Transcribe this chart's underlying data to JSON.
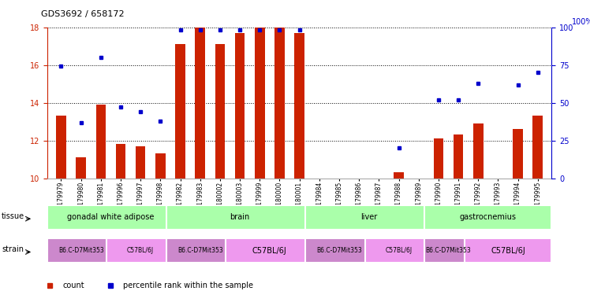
{
  "title": "GDS3692 / 658172",
  "samples": [
    "GSM179979",
    "GSM179980",
    "GSM179981",
    "GSM179996",
    "GSM179997",
    "GSM179998",
    "GSM179982",
    "GSM179983",
    "GSM180002",
    "GSM180003",
    "GSM179999",
    "GSM180000",
    "GSM180001",
    "GSM179984",
    "GSM179985",
    "GSM179986",
    "GSM179987",
    "GSM179988",
    "GSM179989",
    "GSM179990",
    "GSM179991",
    "GSM179992",
    "GSM179993",
    "GSM179994",
    "GSM179995"
  ],
  "counts": [
    13.3,
    11.1,
    13.9,
    11.8,
    11.7,
    11.3,
    17.1,
    18.0,
    17.1,
    17.7,
    18.0,
    18.0,
    17.7,
    null,
    null,
    null,
    null,
    10.3,
    null,
    12.1,
    12.3,
    12.9,
    null,
    12.6,
    13.3
  ],
  "percentiles": [
    74,
    37,
    80,
    47,
    44,
    38,
    98,
    98,
    98,
    98,
    98,
    98,
    98,
    null,
    null,
    null,
    null,
    20,
    null,
    52,
    52,
    63,
    null,
    62,
    70
  ],
  "ylim_left": [
    10,
    18
  ],
  "ylim_right": [
    0,
    100
  ],
  "yticks_left": [
    10,
    12,
    14,
    16,
    18
  ],
  "yticks_right": [
    0,
    25,
    50,
    75,
    100
  ],
  "tissue_groups": [
    {
      "label": "gonadal white adipose",
      "start": 0,
      "end": 6,
      "color": "#aaffaa"
    },
    {
      "label": "brain",
      "start": 6,
      "end": 13,
      "color": "#aaffaa"
    },
    {
      "label": "liver",
      "start": 13,
      "end": 19,
      "color": "#aaffaa"
    },
    {
      "label": "gastrocnemius",
      "start": 19,
      "end": 25,
      "color": "#aaffaa"
    }
  ],
  "strain_groups": [
    {
      "label": "B6.C-D7Mit353",
      "start": 0,
      "end": 3,
      "color": "#cc88cc"
    },
    {
      "label": "C57BL/6J",
      "start": 3,
      "end": 6,
      "color": "#ee99ee"
    },
    {
      "label": "B6.C-D7Mit353",
      "start": 6,
      "end": 9,
      "color": "#cc88cc"
    },
    {
      "label": "C57BL/6J",
      "start": 9,
      "end": 13,
      "color": "#ee99ee"
    },
    {
      "label": "B6.C-D7Mit353",
      "start": 13,
      "end": 16,
      "color": "#cc88cc"
    },
    {
      "label": "C57BL/6J",
      "start": 16,
      "end": 19,
      "color": "#ee99ee"
    },
    {
      "label": "B6.C-D7Mit353",
      "start": 19,
      "end": 21,
      "color": "#cc88cc"
    },
    {
      "label": "C57BL/6J",
      "start": 21,
      "end": 25,
      "color": "#ee99ee"
    }
  ],
  "bar_color": "#CC2200",
  "dot_color": "#0000CC",
  "bar_width": 0.5,
  "background_color": "#ffffff",
  "left_axis_color": "#CC2200",
  "right_axis_color": "#0000CC",
  "right_axis_label": "100%"
}
